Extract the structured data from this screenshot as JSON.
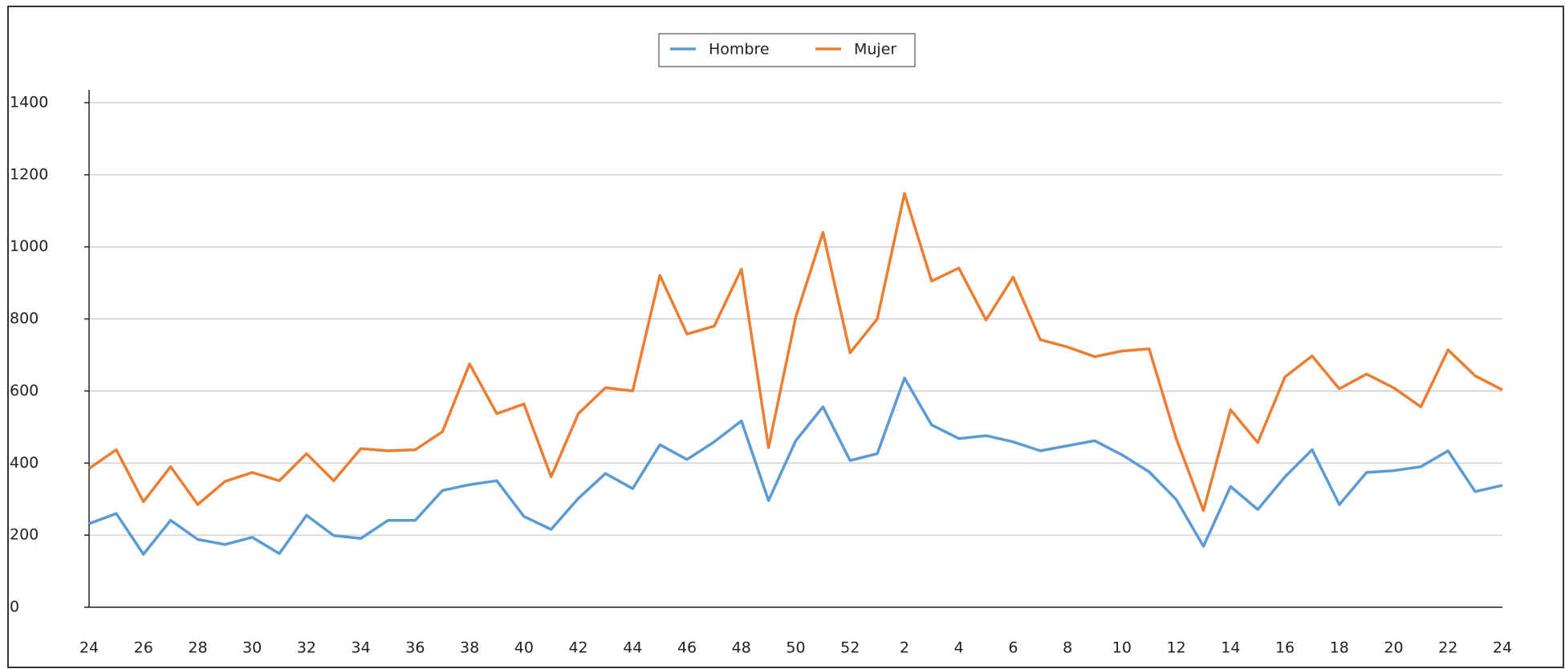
{
  "chart_data": {
    "type": "line",
    "categories": [
      "24",
      null,
      "26",
      null,
      "28",
      null,
      "30",
      null,
      "32",
      null,
      "34",
      null,
      "36",
      null,
      "38",
      null,
      "40",
      null,
      "42",
      null,
      "44",
      null,
      "46",
      null,
      "48",
      null,
      "50",
      null,
      "52",
      null,
      "2",
      null,
      "4",
      null,
      "6",
      null,
      "8",
      null,
      "10",
      null,
      "12",
      null,
      "14",
      null,
      "16",
      null,
      "18",
      null,
      "20",
      null,
      "22",
      null,
      "24"
    ],
    "series": [
      {
        "name": "Hombre",
        "color": "#5b9bd5",
        "values": [
          232,
          260,
          147,
          241,
          188,
          174,
          194,
          149,
          255,
          199,
          191,
          241,
          241,
          324,
          340,
          351,
          252,
          216,
          302,
          371,
          329,
          451,
          410,
          459,
          517,
          296,
          462,
          556,
          407,
          426,
          636,
          506,
          468,
          476,
          459,
          434,
          448,
          462,
          423,
          376,
          299,
          169,
          335,
          271,
          362,
          437,
          285,
          374,
          379,
          390,
          434,
          321,
          338
        ]
      },
      {
        "name": "Mujer",
        "color": "#ed7d31",
        "values": [
          385,
          437,
          293,
          390,
          285,
          349,
          374,
          351,
          426,
          351,
          440,
          434,
          437,
          487,
          675,
          537,
          564,
          362,
          537,
          609,
          600,
          921,
          758,
          780,
          938,
          443,
          805,
          1040,
          706,
          800,
          1148,
          905,
          941,
          797,
          916,
          742,
          722,
          695,
          711,
          717,
          468,
          268,
          548,
          457,
          639,
          697,
          606,
          647,
          609,
          556,
          714,
          642,
          603
        ]
      }
    ],
    "ylim": [
      0,
      1400
    ],
    "yticks": [
      0,
      200,
      400,
      600,
      800,
      1000,
      1200,
      1400
    ],
    "grid": true,
    "legend": "top"
  }
}
